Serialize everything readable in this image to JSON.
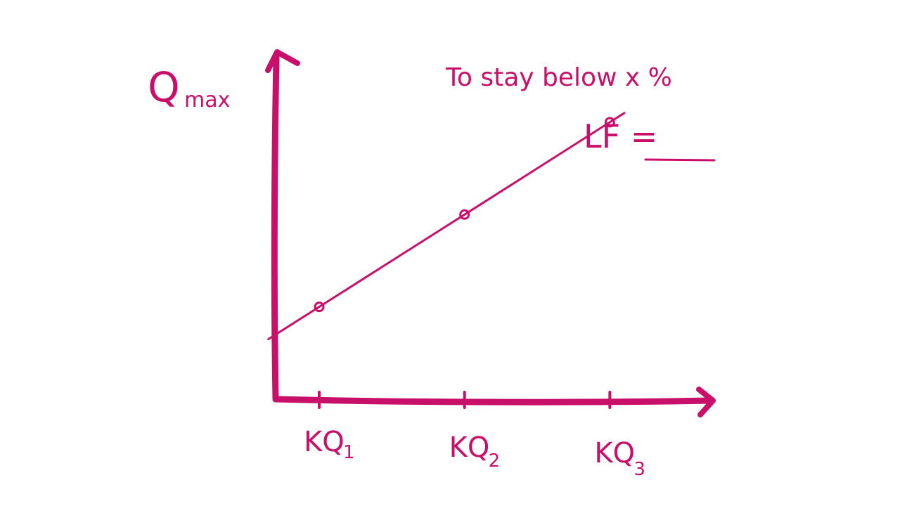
{
  "chart_data": {
    "type": "line",
    "title": "",
    "ylabel": {
      "main": "Q",
      "sub": "max"
    },
    "xlabel": "",
    "categories": [
      {
        "main": "KQ",
        "sub": "1"
      },
      {
        "main": "KQ",
        "sub": "2"
      },
      {
        "main": "KQ",
        "sub": "3"
      }
    ],
    "x": [
      1,
      2,
      3
    ],
    "values": [
      1.0,
      2.0,
      3.0
    ],
    "ylim": [
      0,
      3.7
    ],
    "xlim": [
      0.7,
      3.7
    ],
    "annotations": {
      "note": "To stay below x %",
      "lf_label": "LF =",
      "lf_value": ""
    },
    "grid": false,
    "legend": "none"
  },
  "colors": {
    "ink": "#c8106a",
    "background": "#ffffff"
  }
}
